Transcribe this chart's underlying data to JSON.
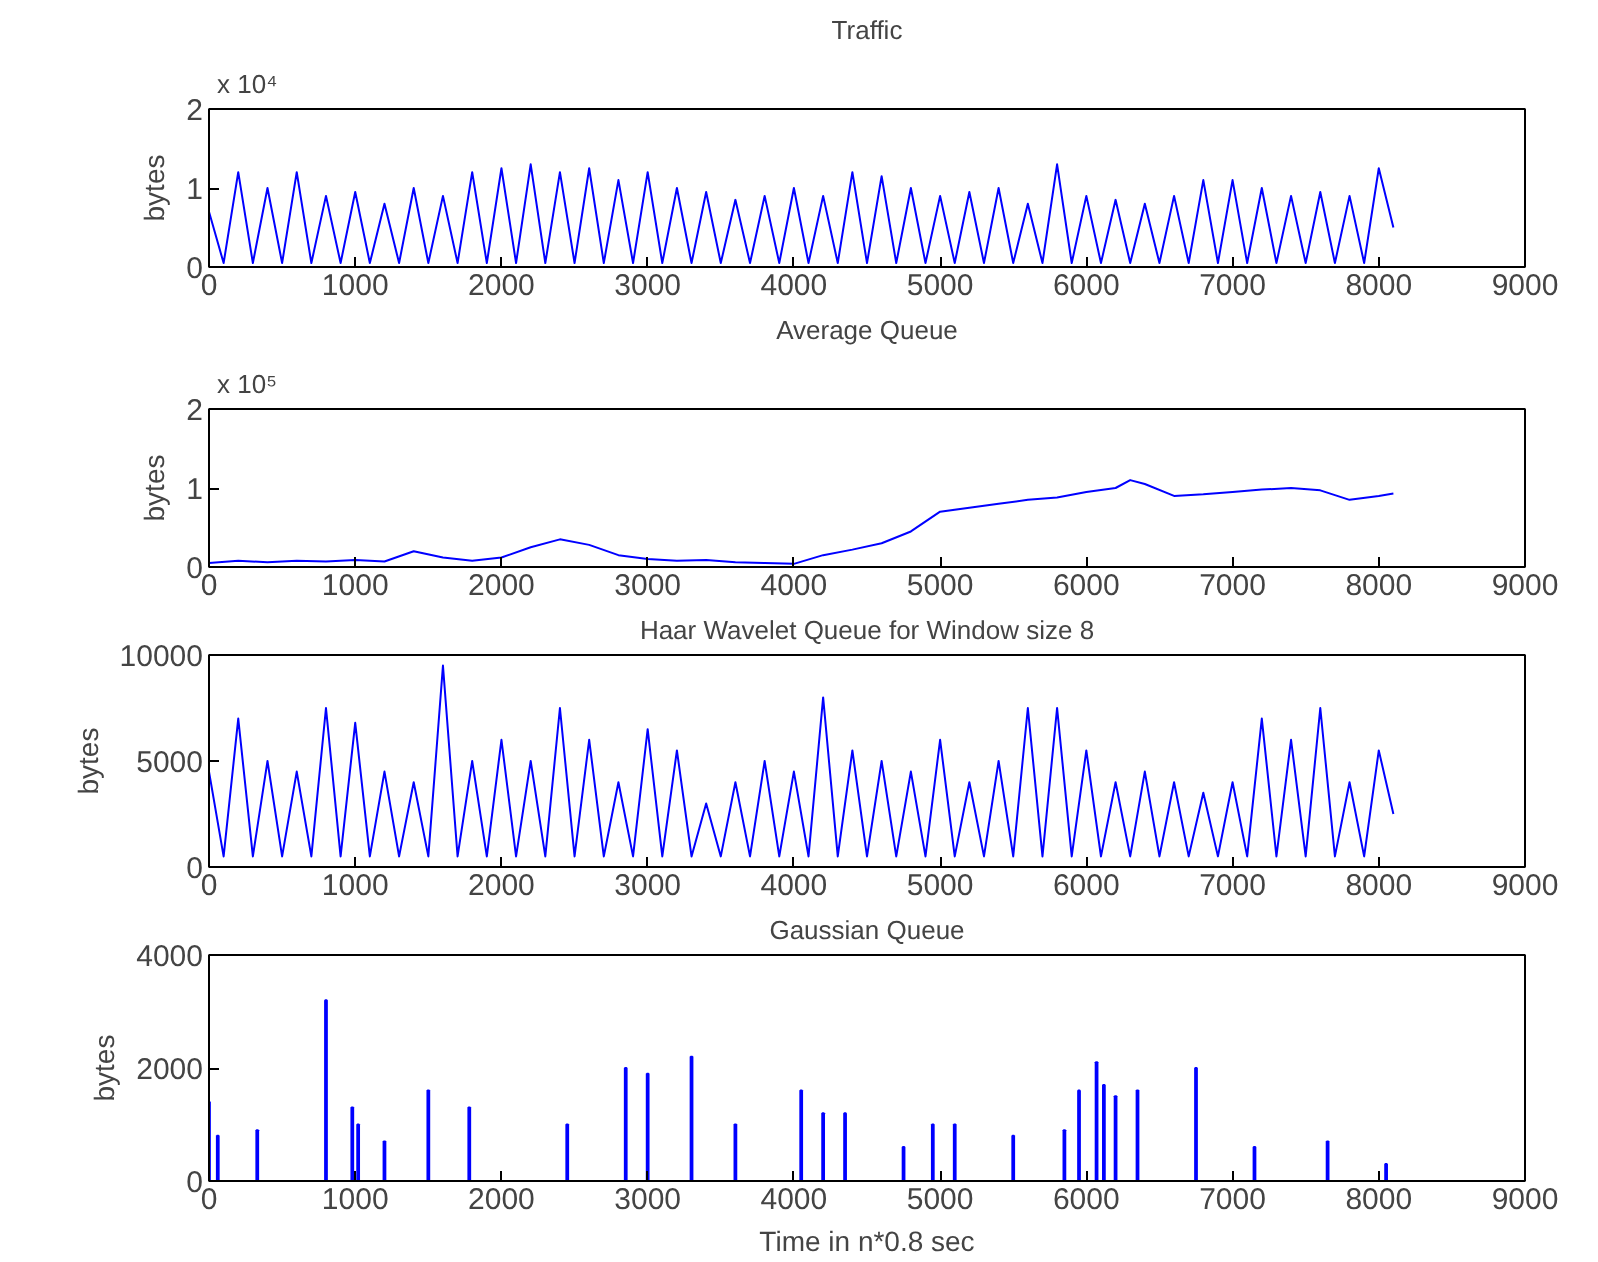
{
  "chart_data": [
    {
      "type": "line",
      "title": "Traffic",
      "ylabel": "bytes",
      "color": "#0000ff",
      "grid": false,
      "annotations": [
        "x 10⁴"
      ],
      "x": [
        0,
        100,
        200,
        300,
        400,
        500,
        600,
        700,
        800,
        900,
        1000,
        1100,
        1200,
        1300,
        1400,
        1500,
        1600,
        1700,
        1800,
        1900,
        2000,
        2100,
        2200,
        2300,
        2400,
        2500,
        2600,
        2700,
        2800,
        2900,
        3000,
        3100,
        3200,
        3300,
        3400,
        3500,
        3600,
        3700,
        3800,
        3900,
        4000,
        4100,
        4200,
        4300,
        4400,
        4500,
        4600,
        4700,
        4800,
        4900,
        5000,
        5100,
        5200,
        5300,
        5400,
        5500,
        5600,
        5700,
        5800,
        5900,
        6000,
        6100,
        6200,
        6300,
        6400,
        6500,
        6600,
        6700,
        6800,
        6900,
        7000,
        7100,
        7200,
        7300,
        7400,
        7500,
        7600,
        7700,
        7800,
        7900,
        8000,
        8100
      ],
      "values": [
        0.7,
        0.05,
        1.2,
        0.05,
        1.0,
        0.05,
        1.2,
        0.05,
        0.9,
        0.05,
        0.95,
        0.05,
        0.8,
        0.05,
        1.0,
        0.05,
        0.9,
        0.05,
        1.2,
        0.05,
        1.25,
        0.05,
        1.3,
        0.05,
        1.2,
        0.05,
        1.25,
        0.05,
        1.1,
        0.05,
        1.2,
        0.05,
        1.0,
        0.05,
        0.95,
        0.05,
        0.85,
        0.05,
        0.9,
        0.05,
        1.0,
        0.05,
        0.9,
        0.05,
        1.2,
        0.05,
        1.15,
        0.05,
        1.0,
        0.05,
        0.9,
        0.05,
        0.95,
        0.05,
        1.0,
        0.05,
        0.8,
        0.05,
        1.3,
        0.05,
        0.9,
        0.05,
        0.85,
        0.05,
        0.8,
        0.05,
        0.9,
        0.05,
        1.1,
        0.05,
        1.1,
        0.05,
        1.0,
        0.05,
        0.9,
        0.05,
        0.95,
        0.05,
        0.9,
        0.05,
        1.25,
        0.5
      ],
      "xlim": [
        0,
        9000
      ],
      "xticks": [
        0,
        1000,
        2000,
        3000,
        4000,
        5000,
        6000,
        7000,
        8000,
        9000
      ],
      "ylim": [
        0,
        2
      ],
      "yticks": [
        0,
        1,
        2
      ]
    },
    {
      "type": "line",
      "title": "Average Queue",
      "ylabel": "bytes",
      "color": "#0000ff",
      "grid": false,
      "annotations": [
        "x 10⁵"
      ],
      "x": [
        0,
        200,
        400,
        600,
        800,
        1000,
        1200,
        1400,
        1600,
        1800,
        2000,
        2200,
        2400,
        2600,
        2800,
        3000,
        3200,
        3400,
        3600,
        3800,
        4000,
        4200,
        4400,
        4600,
        4800,
        5000,
        5200,
        5400,
        5600,
        5800,
        6000,
        6200,
        6300,
        6400,
        6600,
        6800,
        7000,
        7200,
        7400,
        7600,
        7800,
        8000,
        8100
      ],
      "values": [
        0.05,
        0.08,
        0.06,
        0.08,
        0.07,
        0.09,
        0.07,
        0.2,
        0.12,
        0.08,
        0.12,
        0.25,
        0.35,
        0.28,
        0.15,
        0.1,
        0.08,
        0.09,
        0.06,
        0.05,
        0.04,
        0.15,
        0.22,
        0.3,
        0.45,
        0.7,
        0.75,
        0.8,
        0.85,
        0.88,
        0.95,
        1.0,
        1.1,
        1.05,
        0.9,
        0.92,
        0.95,
        0.98,
        1.0,
        0.97,
        0.85,
        0.9,
        0.93
      ],
      "xlim": [
        0,
        9000
      ],
      "xticks": [
        0,
        1000,
        2000,
        3000,
        4000,
        5000,
        6000,
        7000,
        8000,
        9000
      ],
      "ylim": [
        0,
        2
      ],
      "yticks": [
        0,
        1,
        2
      ]
    },
    {
      "type": "line",
      "title": "Haar Wavelet Queue for Window size 8",
      "ylabel": "bytes",
      "color": "#0000ff",
      "grid": false,
      "x": [
        0,
        100,
        200,
        300,
        400,
        500,
        600,
        700,
        800,
        900,
        1000,
        1100,
        1200,
        1300,
        1400,
        1500,
        1600,
        1700,
        1800,
        1900,
        2000,
        2100,
        2200,
        2300,
        2400,
        2500,
        2600,
        2700,
        2800,
        2900,
        3000,
        3100,
        3200,
        3300,
        3400,
        3500,
        3600,
        3700,
        3800,
        3900,
        4000,
        4100,
        4200,
        4300,
        4400,
        4500,
        4600,
        4700,
        4800,
        4900,
        5000,
        5100,
        5200,
        5300,
        5400,
        5500,
        5600,
        5700,
        5800,
        5900,
        6000,
        6100,
        6200,
        6300,
        6400,
        6500,
        6600,
        6700,
        6800,
        6900,
        7000,
        7100,
        7200,
        7300,
        7400,
        7500,
        7600,
        7700,
        7800,
        7900,
        8000,
        8100
      ],
      "values": [
        4500,
        500,
        7000,
        500,
        5000,
        500,
        4500,
        500,
        7500,
        500,
        6800,
        500,
        4500,
        500,
        4000,
        500,
        9500,
        500,
        5000,
        500,
        6000,
        500,
        5000,
        500,
        7500,
        500,
        6000,
        500,
        4000,
        500,
        6500,
        500,
        5500,
        500,
        3000,
        500,
        4000,
        500,
        5000,
        500,
        4500,
        500,
        8000,
        500,
        5500,
        500,
        5000,
        500,
        4500,
        500,
        6000,
        500,
        4000,
        500,
        5000,
        500,
        7500,
        500,
        7500,
        500,
        5500,
        500,
        4000,
        500,
        4500,
        500,
        4000,
        500,
        3500,
        500,
        4000,
        500,
        7000,
        500,
        6000,
        500,
        7500,
        500,
        4000,
        500,
        5500,
        2500
      ],
      "xlim": [
        0,
        9000
      ],
      "xticks": [
        0,
        1000,
        2000,
        3000,
        4000,
        5000,
        6000,
        7000,
        8000,
        9000
      ],
      "ylim": [
        0,
        10000
      ],
      "yticks": [
        0,
        5000,
        10000
      ]
    },
    {
      "type": "bar",
      "title": "Gaussian Queue",
      "xlabel": "Time in n*0.8 sec",
      "ylabel": "bytes",
      "color": "#0000ff",
      "grid": false,
      "x": [
        0,
        60,
        330,
        800,
        980,
        1020,
        1200,
        1500,
        1780,
        2450,
        2850,
        3000,
        3300,
        3600,
        4050,
        4200,
        4350,
        4750,
        4950,
        5100,
        5500,
        5850,
        5950,
        6070,
        6120,
        6200,
        6350,
        6750,
        7150,
        7650,
        8050
      ],
      "values": [
        1400,
        800,
        900,
        3200,
        1300,
        1000,
        700,
        1600,
        1300,
        1000,
        2000,
        1900,
        2200,
        1000,
        1600,
        1200,
        1200,
        600,
        1000,
        1000,
        800,
        900,
        1600,
        2100,
        1700,
        1500,
        1600,
        2000,
        600,
        700,
        300
      ],
      "xlim": [
        0,
        9000
      ],
      "xticks": [
        0,
        1000,
        2000,
        3000,
        4000,
        5000,
        6000,
        7000,
        8000,
        9000
      ],
      "ylim": [
        0,
        4000
      ],
      "yticks": [
        0,
        2000,
        4000
      ]
    }
  ]
}
